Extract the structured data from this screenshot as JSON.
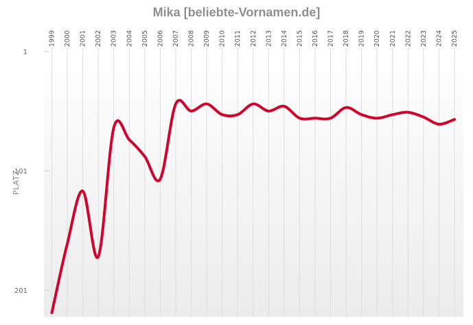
{
  "chart_data": {
    "type": "line",
    "title": "Mika [beliebte-Vornamen.de]",
    "xlabel": "",
    "ylabel": "PLATZ",
    "x": [
      "1999",
      "2000",
      "2001",
      "2002",
      "2003",
      "2004",
      "2005",
      "2006",
      "2007",
      "2008",
      "2009",
      "2010",
      "2011",
      "2012",
      "2013",
      "2014",
      "2015",
      "2016",
      "2017",
      "2018",
      "2019",
      "2020",
      "2021",
      "2022",
      "2023",
      "2024",
      "2025"
    ],
    "y_ticks": [
      1,
      101,
      201
    ],
    "ylim": [
      1,
      222
    ],
    "y_inverted": true,
    "grid": "vertical",
    "series": [
      {
        "values": [
          220,
          162,
          118,
          173,
          65,
          75,
          89,
          108,
          45,
          51,
          45,
          54,
          54,
          45,
          51,
          47,
          57,
          57,
          57,
          48,
          54,
          57,
          54,
          52,
          56,
          62,
          58
        ]
      }
    ],
    "colors": {
      "line": "#d0042c",
      "title": "#8f8f8f",
      "grid": "#dddddd"
    }
  }
}
